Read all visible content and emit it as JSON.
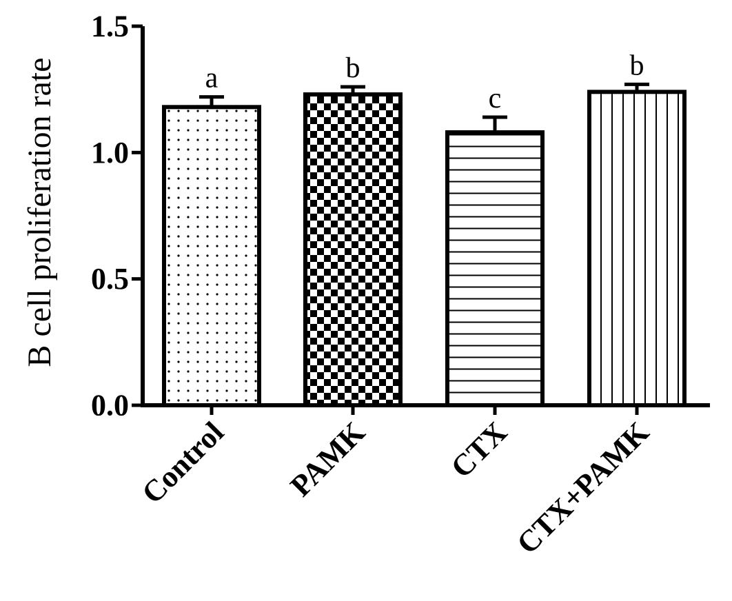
{
  "chart_data": {
    "type": "bar",
    "ylabel": "B cell proliferation rate",
    "ylim": [
      0,
      1.5
    ],
    "yticks": [
      "0.0",
      "0.5",
      "1.0",
      "1.5"
    ],
    "categories": [
      "Control",
      "PAMK",
      "CTX",
      "CTX+PAMK"
    ],
    "values": [
      1.18,
      1.23,
      1.08,
      1.24
    ],
    "errors": [
      0.04,
      0.03,
      0.06,
      0.03
    ],
    "significance": [
      "a",
      "b",
      "c",
      "b"
    ],
    "patterns": [
      "dots",
      "checker",
      "horizontal-lines",
      "vertical-lines"
    ],
    "grid": false,
    "legend": "none",
    "colors": {
      "stroke": "#000000",
      "background": "#ffffff"
    }
  }
}
